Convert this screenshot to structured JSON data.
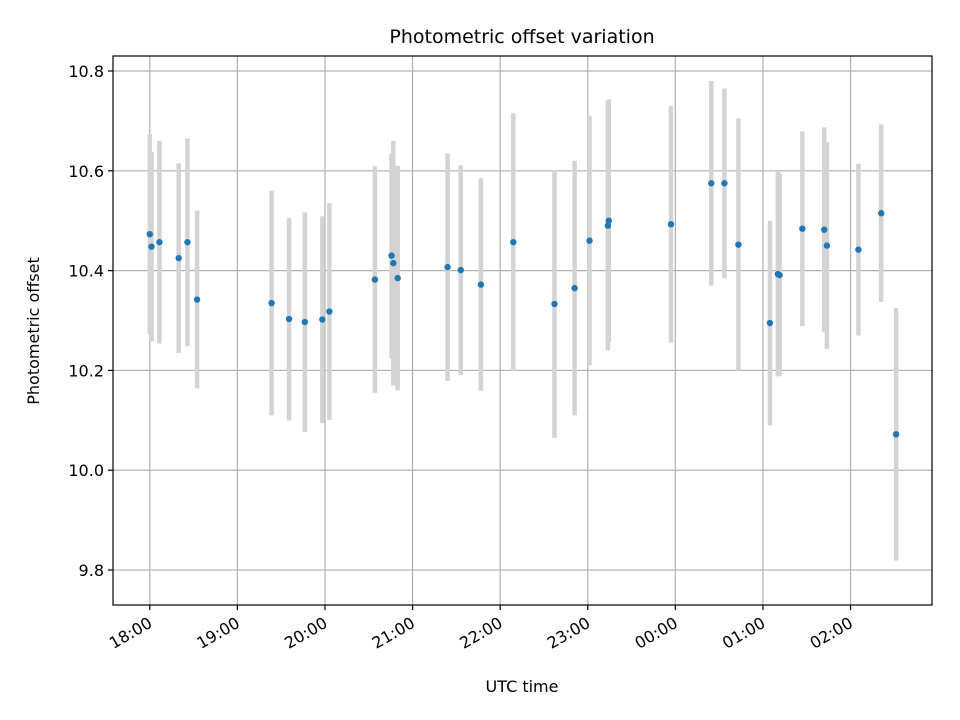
{
  "chart_data": {
    "type": "scatter",
    "title": "Photometric offset variation",
    "xlabel": "UTC time",
    "ylabel": "Photometric offset",
    "x_unit": "hours (UTC, continuing past midnight)",
    "xlim": [
      17.58,
      26.93
    ],
    "ylim": [
      9.73,
      10.83
    ],
    "x_ticks": [
      {
        "value": 18,
        "label": "18:00"
      },
      {
        "value": 19,
        "label": "19:00"
      },
      {
        "value": 20,
        "label": "20:00"
      },
      {
        "value": 21,
        "label": "21:00"
      },
      {
        "value": 22,
        "label": "22:00"
      },
      {
        "value": 23,
        "label": "23:00"
      },
      {
        "value": 24,
        "label": "00:00"
      },
      {
        "value": 25,
        "label": "01:00"
      },
      {
        "value": 26,
        "label": "02:00"
      }
    ],
    "y_ticks": [
      {
        "value": 9.8,
        "label": "9.8"
      },
      {
        "value": 10.0,
        "label": "10.0"
      },
      {
        "value": 10.2,
        "label": "10.2"
      },
      {
        "value": 10.4,
        "label": "10.4"
      },
      {
        "value": 10.6,
        "label": "10.6"
      },
      {
        "value": 10.8,
        "label": "10.8"
      }
    ],
    "grid": true,
    "marker_color": "#1f77b4",
    "errorbar_color": "#d3d3d3",
    "points": [
      {
        "x": 18.0,
        "y": 10.473,
        "err": 0.2
      },
      {
        "x": 18.02,
        "y": 10.448,
        "err": 0.19
      },
      {
        "x": 18.11,
        "y": 10.457,
        "err": 0.203
      },
      {
        "x": 18.33,
        "y": 10.425,
        "err": 0.19
      },
      {
        "x": 18.43,
        "y": 10.457,
        "err": 0.208
      },
      {
        "x": 18.54,
        "y": 10.342,
        "err": 0.178
      },
      {
        "x": 19.39,
        "y": 10.335,
        "err": 0.225
      },
      {
        "x": 19.59,
        "y": 10.303,
        "err": 0.203
      },
      {
        "x": 19.77,
        "y": 10.297,
        "err": 0.22
      },
      {
        "x": 19.97,
        "y": 10.302,
        "err": 0.207
      },
      {
        "x": 20.05,
        "y": 10.318,
        "err": 0.217
      },
      {
        "x": 20.57,
        "y": 10.382,
        "err": 0.227
      },
      {
        "x": 20.76,
        "y": 10.43,
        "err": 0.205
      },
      {
        "x": 20.78,
        "y": 10.415,
        "err": 0.245
      },
      {
        "x": 20.83,
        "y": 10.385,
        "err": 0.225
      },
      {
        "x": 21.4,
        "y": 10.407,
        "err": 0.228
      },
      {
        "x": 21.55,
        "y": 10.401,
        "err": 0.21
      },
      {
        "x": 21.78,
        "y": 10.372,
        "err": 0.213
      },
      {
        "x": 22.15,
        "y": 10.457,
        "err": 0.258
      },
      {
        "x": 22.62,
        "y": 10.333,
        "err": 0.268
      },
      {
        "x": 22.85,
        "y": 10.365,
        "err": 0.255
      },
      {
        "x": 23.02,
        "y": 10.46,
        "err": 0.25
      },
      {
        "x": 23.23,
        "y": 10.49,
        "err": 0.25
      },
      {
        "x": 23.24,
        "y": 10.5,
        "err": 0.243
      },
      {
        "x": 23.95,
        "y": 10.493,
        "err": 0.237
      },
      {
        "x": 24.41,
        "y": 10.575,
        "err": 0.205
      },
      {
        "x": 24.56,
        "y": 10.575,
        "err": 0.19
      },
      {
        "x": 24.72,
        "y": 10.452,
        "err": 0.253
      },
      {
        "x": 25.08,
        "y": 10.295,
        "err": 0.205
      },
      {
        "x": 25.17,
        "y": 10.393,
        "err": 0.205
      },
      {
        "x": 25.19,
        "y": 10.391,
        "err": 0.203
      },
      {
        "x": 25.45,
        "y": 10.484,
        "err": 0.195
      },
      {
        "x": 25.7,
        "y": 10.482,
        "err": 0.205
      },
      {
        "x": 25.73,
        "y": 10.45,
        "err": 0.207
      },
      {
        "x": 26.09,
        "y": 10.442,
        "err": 0.172
      },
      {
        "x": 26.35,
        "y": 10.515,
        "err": 0.178
      },
      {
        "x": 26.52,
        "y": 10.072,
        "err": 0.253
      }
    ]
  }
}
